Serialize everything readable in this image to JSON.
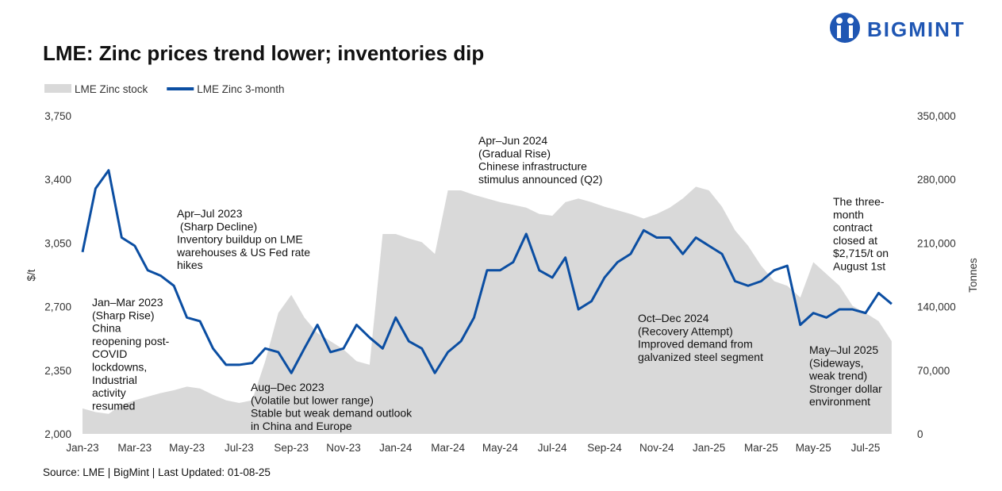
{
  "chart_data": {
    "type": "area-line",
    "title": "LME: Zinc prices trend lower; inventories dip",
    "brand": "BIGMINT",
    "source": "Source: LME | BigMint | Last Updated: 01-08-25",
    "ylabel": "$/t",
    "y2label": "Tonnes",
    "categories": [
      "Jan-23",
      null,
      null,
      null,
      "Mar-23",
      null,
      null,
      null,
      "May-23",
      null,
      null,
      null,
      "Jul-23",
      null,
      null,
      null,
      "Sep-23",
      null,
      null,
      null,
      "Nov-23",
      null,
      null,
      null,
      "Jan-24",
      null,
      null,
      null,
      "Mar-24",
      null,
      null,
      null,
      "May-24",
      null,
      null,
      null,
      "Jul-24",
      null,
      null,
      null,
      "Sep-24",
      null,
      null,
      null,
      "Nov-24",
      null,
      null,
      null,
      "Jan-25",
      null,
      null,
      null,
      "Mar-25",
      null,
      null,
      null,
      "May-25",
      null,
      null,
      null,
      "Jul-25",
      null,
      null
    ],
    "series": [
      {
        "name": "LME Zinc stock",
        "type": "area",
        "axis": "y2",
        "color": "#d9d9d9",
        "values": [
          28000,
          24000,
          22000,
          32000,
          37000,
          41000,
          45000,
          48000,
          52000,
          50000,
          43000,
          37000,
          34000,
          37000,
          80000,
          133000,
          153000,
          128000,
          111000,
          102000,
          93000,
          80000,
          76000,
          220000,
          220000,
          215000,
          211000,
          198000,
          268000,
          268000,
          263000,
          259000,
          255000,
          252000,
          249000,
          242000,
          240000,
          255000,
          259000,
          255000,
          250000,
          246000,
          242000,
          237000,
          242000,
          249000,
          259000,
          272000,
          268000,
          250000,
          224000,
          207000,
          185000,
          168000,
          163000,
          150000,
          189000,
          176000,
          163000,
          141000,
          133000,
          124000,
          102000
        ]
      },
      {
        "name": "LME Zinc 3-month",
        "type": "line",
        "color": "#0b4ea2",
        "values": [
          3000,
          3350,
          3450,
          3080,
          3035,
          2900,
          2870,
          2815,
          2640,
          2620,
          2470,
          2380,
          2380,
          2390,
          2470,
          2450,
          2335,
          2470,
          2600,
          2450,
          2470,
          2600,
          2530,
          2470,
          2640,
          2510,
          2470,
          2335,
          2450,
          2510,
          2640,
          2900,
          2900,
          2945,
          3100,
          2900,
          2860,
          2970,
          2685,
          2730,
          2860,
          2945,
          2990,
          3120,
          3080,
          3080,
          2990,
          3080,
          3035,
          2990,
          2840,
          2815,
          2840,
          2900,
          2925,
          2600,
          2665,
          2640,
          2685,
          2685,
          2665,
          2775,
          2715
        ]
      }
    ],
    "ylim": [
      2000,
      3750
    ],
    "yticks": [
      {
        "value": 2000,
        "label": "2,000"
      },
      {
        "value": 2350,
        "label": "2,350"
      },
      {
        "value": 2700,
        "label": "2,700"
      },
      {
        "value": 3050,
        "label": "3,050"
      },
      {
        "value": 3400,
        "label": "3,400"
      },
      {
        "value": 3750,
        "label": "3,750"
      }
    ],
    "y2lim": [
      0,
      350000
    ],
    "y2ticks": [
      0,
      {
        "value": 70000,
        "label": "70,000"
      },
      {
        "value": 140000,
        "label": "140,000"
      },
      {
        "value": 210000,
        "label": "210,000"
      },
      {
        "value": 280000,
        "label": "280,000"
      },
      {
        "value": 350000,
        "label": "350,000"
      }
    ],
    "grid": false,
    "legend": "top-left",
    "annotations": [
      [
        "Jan–Mar 2023",
        "(Sharp Rise)",
        "China",
        "reopening post-",
        "COVID",
        "lockdowns,",
        "Industrial",
        "activity",
        "resumed"
      ],
      [
        "Apr–Jul 2023",
        " (Sharp Decline)",
        "Inventory buildup on LME",
        "warehouses & US Fed rate",
        "hikes"
      ],
      [
        "Aug–Dec 2023",
        "(Volatile but lower range)",
        "Stable but weak demand outlook",
        "in China and Europe"
      ],
      [
        "Apr–Jun 2024",
        "(Gradual Rise)",
        "Chinese infrastructure",
        "stimulus announced (Q2)"
      ],
      [
        "Oct–Dec 2024",
        "(Recovery Attempt)",
        "Improved demand from",
        "galvanized steel segment"
      ],
      [
        "May–Jul 2025",
        "(Sideways,",
        "weak trend)",
        "Stronger dollar",
        "environment"
      ],
      [
        "The three-",
        "month",
        "contract",
        "closed at",
        "$2,715/t on",
        "August 1st"
      ]
    ]
  }
}
